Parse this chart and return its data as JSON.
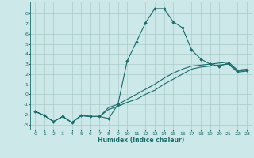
{
  "xlabel": "Humidex (Indice chaleur)",
  "ylabel": "",
  "xlim": [
    -0.5,
    23.5
  ],
  "ylim": [
    -3.5,
    9.2
  ],
  "yticks": [
    -3,
    -2,
    -1,
    0,
    1,
    2,
    3,
    4,
    5,
    6,
    7,
    8
  ],
  "xticks": [
    0,
    1,
    2,
    3,
    4,
    5,
    6,
    7,
    8,
    9,
    10,
    11,
    12,
    13,
    14,
    15,
    16,
    17,
    18,
    19,
    20,
    21,
    22,
    23
  ],
  "bg_color": "#cce8e8",
  "grid_color": "#aacccc",
  "line_color": "#1a6b6b",
  "curve1_x": [
    0,
    1,
    2,
    3,
    4,
    5,
    6,
    7,
    8,
    9,
    10,
    11,
    12,
    13,
    14,
    15,
    16,
    17,
    18,
    19,
    20,
    21,
    22,
    23
  ],
  "curve1_y": [
    -1.7,
    -2.1,
    -2.7,
    -2.2,
    -2.8,
    -2.1,
    -2.2,
    -2.2,
    -2.4,
    -1.0,
    3.3,
    5.2,
    7.1,
    8.5,
    8.5,
    7.2,
    6.6,
    4.4,
    3.5,
    3.0,
    2.8,
    3.1,
    2.3,
    2.4
  ],
  "curve2_x": [
    0,
    1,
    2,
    3,
    4,
    5,
    6,
    7,
    8,
    9,
    10,
    11,
    12,
    13,
    14,
    15,
    16,
    17,
    18,
    19,
    20,
    21,
    22,
    23
  ],
  "curve2_y": [
    -1.7,
    -2.1,
    -2.7,
    -2.2,
    -2.8,
    -2.1,
    -2.2,
    -2.2,
    -1.5,
    -1.2,
    -0.8,
    -0.5,
    0.0,
    0.4,
    1.0,
    1.5,
    2.0,
    2.5,
    2.7,
    2.8,
    2.9,
    3.0,
    2.2,
    2.3
  ],
  "curve3_x": [
    0,
    1,
    2,
    3,
    4,
    5,
    6,
    7,
    8,
    9,
    10,
    11,
    12,
    13,
    14,
    15,
    16,
    17,
    18,
    19,
    20,
    21,
    22,
    23
  ],
  "curve3_y": [
    -1.7,
    -2.1,
    -2.7,
    -2.2,
    -2.8,
    -2.1,
    -2.2,
    -2.2,
    -1.3,
    -1.0,
    -0.5,
    0.0,
    0.5,
    1.0,
    1.6,
    2.1,
    2.5,
    2.8,
    2.9,
    3.0,
    3.1,
    3.2,
    2.4,
    2.5
  ]
}
